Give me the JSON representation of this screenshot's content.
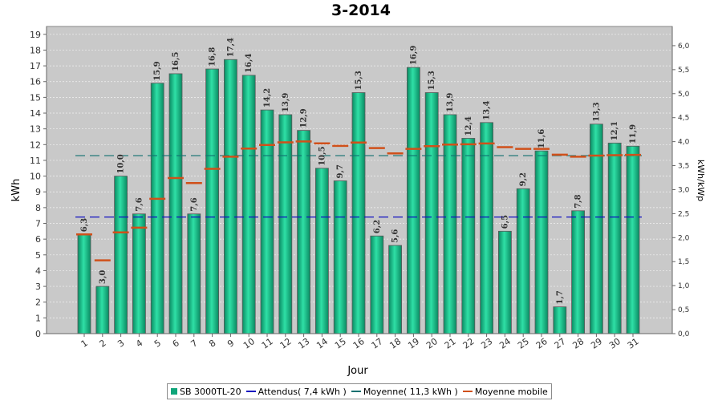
{
  "chart_data": {
    "type": "bar",
    "title": "3-2014",
    "xlabel": "Jour",
    "ylabel": "kWh",
    "y2label": "kWh/kWp",
    "ylim": [
      0,
      19.5
    ],
    "y2lim": [
      0,
      6.4
    ],
    "yticks": [
      0,
      1,
      2,
      3,
      4,
      5,
      6,
      7,
      8,
      9,
      10,
      11,
      12,
      13,
      14,
      15,
      16,
      17,
      18,
      19
    ],
    "y2ticks": [
      "0,0",
      "0,5",
      "1,0",
      "1,5",
      "2,0",
      "2,5",
      "3,0",
      "3,5",
      "4,0",
      "4,5",
      "5,0",
      "5,5",
      "6,0"
    ],
    "y2tick_values": [
      0,
      0.5,
      1,
      1.5,
      2,
      2.5,
      3,
      3.5,
      4,
      4.5,
      5,
      5.5,
      6
    ],
    "grid": true,
    "legend_position": "bottom",
    "categories": [
      "1",
      "2",
      "3",
      "4",
      "5",
      "6",
      "7",
      "8",
      "9",
      "10",
      "11",
      "12",
      "13",
      "14",
      "15",
      "16",
      "17",
      "18",
      "19",
      "20",
      "21",
      "22",
      "23",
      "24",
      "25",
      "26",
      "27",
      "28",
      "29",
      "30",
      "31"
    ],
    "series": [
      {
        "name": "SB 3000TL-20",
        "type": "bar",
        "color": "#0fa57a",
        "values": [
          6.3,
          3.0,
          10.0,
          7.6,
          15.9,
          16.5,
          7.6,
          16.8,
          17.4,
          16.4,
          14.2,
          13.9,
          12.9,
          10.5,
          9.7,
          15.3,
          6.2,
          5.6,
          16.9,
          15.3,
          13.9,
          12.4,
          13.4,
          6.5,
          9.2,
          11.6,
          1.7,
          7.8,
          13.3,
          12.1,
          11.9
        ],
        "labels": [
          "6,3",
          "3,0",
          "10,0",
          "7,6",
          "15,9",
          "16,5",
          "7,6",
          "16,8",
          "17,4",
          "16,4",
          "14,2",
          "13,9",
          "12,9",
          "10,5",
          "9,7",
          "15,3",
          "6,2",
          "5,6",
          "16,9",
          "15,3",
          "13,9",
          "12,4",
          "13,4",
          "6,5",
          "9,2",
          "11,6",
          "1,7",
          "7,8",
          "13,3",
          "12,1",
          "11,9"
        ]
      },
      {
        "name": "Attendus( 7,4 kWh )",
        "type": "dashed-line",
        "color": "#1010c0",
        "value": 7.4
      },
      {
        "name": "Moyenne( 11,3 kWh )",
        "type": "dashed-line",
        "color": "#107070",
        "value": 11.3
      },
      {
        "name": "Moyenne mobile",
        "type": "step-marker",
        "color": "#d0501a",
        "values": [
          6.3,
          4.65,
          6.43,
          6.73,
          8.56,
          9.88,
          9.56,
          10.46,
          11.23,
          11.75,
          11.98,
          12.14,
          12.2,
          12.08,
          11.92,
          12.13,
          11.78,
          11.44,
          11.73,
          11.9,
          12.0,
          12.02,
          12.07,
          11.84,
          11.73,
          11.73,
          11.36,
          11.23,
          11.3,
          11.33,
          11.35
        ]
      }
    ]
  }
}
